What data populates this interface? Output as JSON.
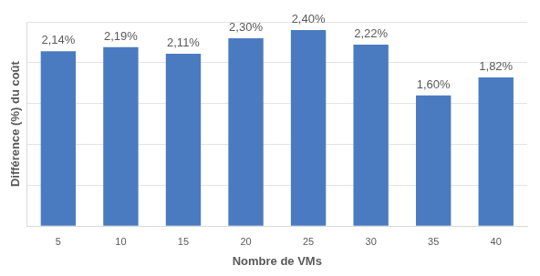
{
  "chart_data": {
    "type": "bar",
    "x_label": "Nombre de VMs",
    "y_label": "Différence (%) du coût",
    "categories": [
      "5",
      "10",
      "15",
      "20",
      "25",
      "30",
      "35",
      "40"
    ],
    "values": [
      2.14,
      2.19,
      2.11,
      2.3,
      2.4,
      2.22,
      1.6,
      1.82
    ],
    "value_labels": [
      "2,14%",
      "2,19%",
      "2,11%",
      "2,30%",
      "2,40%",
      "2,22%",
      "1,60%",
      "1,82%"
    ],
    "color": "#4a7bc1",
    "ylim": [
      0,
      2.5
    ],
    "yticks": [
      0,
      0.5,
      1,
      1.5,
      2,
      2.5
    ],
    "grid": true,
    "data_labels": true,
    "tick_labels": "x"
  }
}
